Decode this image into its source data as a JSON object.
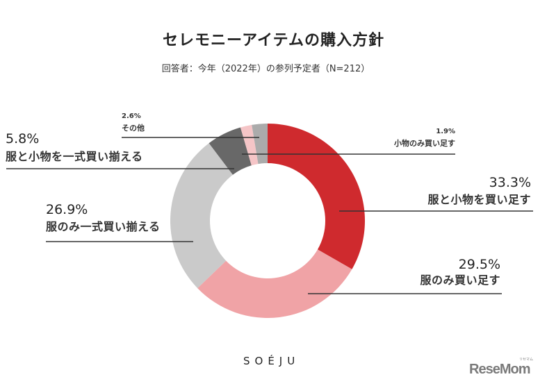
{
  "header": {
    "title": "セレモニーアイテムの購入方針",
    "subtitle": "回答者：今年（2022年）の参列予定者（N=212）"
  },
  "chart_data": {
    "type": "pie",
    "variant": "donut",
    "title": "セレモニーアイテムの購入方針",
    "subtitle": "回答者：今年（2022年）の参列予定者（N=212）",
    "start_angle": "12 o'clock",
    "direction": "clockwise",
    "unit": "%",
    "categories": [
      "服と小物を買い足す",
      "服のみ買い足す",
      "服のみ一式買い揃える",
      "服と小物を一式買い揃える",
      "小物のみ買い足す",
      "その他"
    ],
    "values": [
      33.3,
      29.5,
      26.9,
      5.8,
      1.9,
      2.6
    ],
    "value_labels": [
      "33.3%",
      "29.5%",
      "26.9%",
      "5.8%",
      "1.9%",
      "2.6%"
    ],
    "colors": [
      "#CF2A2E",
      "#F0A3A6",
      "#CACACA",
      "#686868",
      "#F5C5C7",
      "#ABABAB"
    ],
    "legend": "none (direct labels with leader lines)"
  },
  "footer": {
    "brand": "SOÉJU",
    "source_logo": "ReseMom",
    "source_logo_kana": "リセマム"
  }
}
